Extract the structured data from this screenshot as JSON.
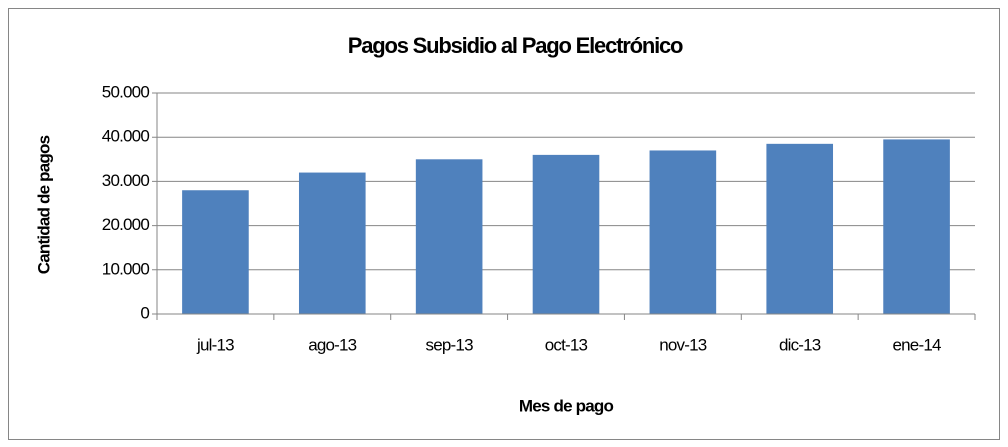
{
  "chart_data": {
    "type": "bar",
    "title": "Pagos Subsidio al Pago Electrónico",
    "x_label": "Mes de pago",
    "y_label": "Cantidad de pagos",
    "categories": [
      "jul-13",
      "ago-13",
      "sep-13",
      "oct-13",
      "nov-13",
      "dic-13",
      "ene-14"
    ],
    "values": [
      28000,
      32000,
      35000,
      36000,
      37000,
      38500,
      39500
    ],
    "color": "#4f81bd",
    "ylim": [
      0,
      50000
    ],
    "yticks": [
      0,
      {
        "value": 10000,
        "label": "10.000"
      },
      {
        "value": 20000,
        "label": "20.000"
      },
      {
        "value": 30000,
        "label": "30.000"
      },
      {
        "value": 40000,
        "label": "40.000"
      },
      {
        "value": 50000,
        "label": "50.000"
      }
    ],
    "grid": true
  }
}
